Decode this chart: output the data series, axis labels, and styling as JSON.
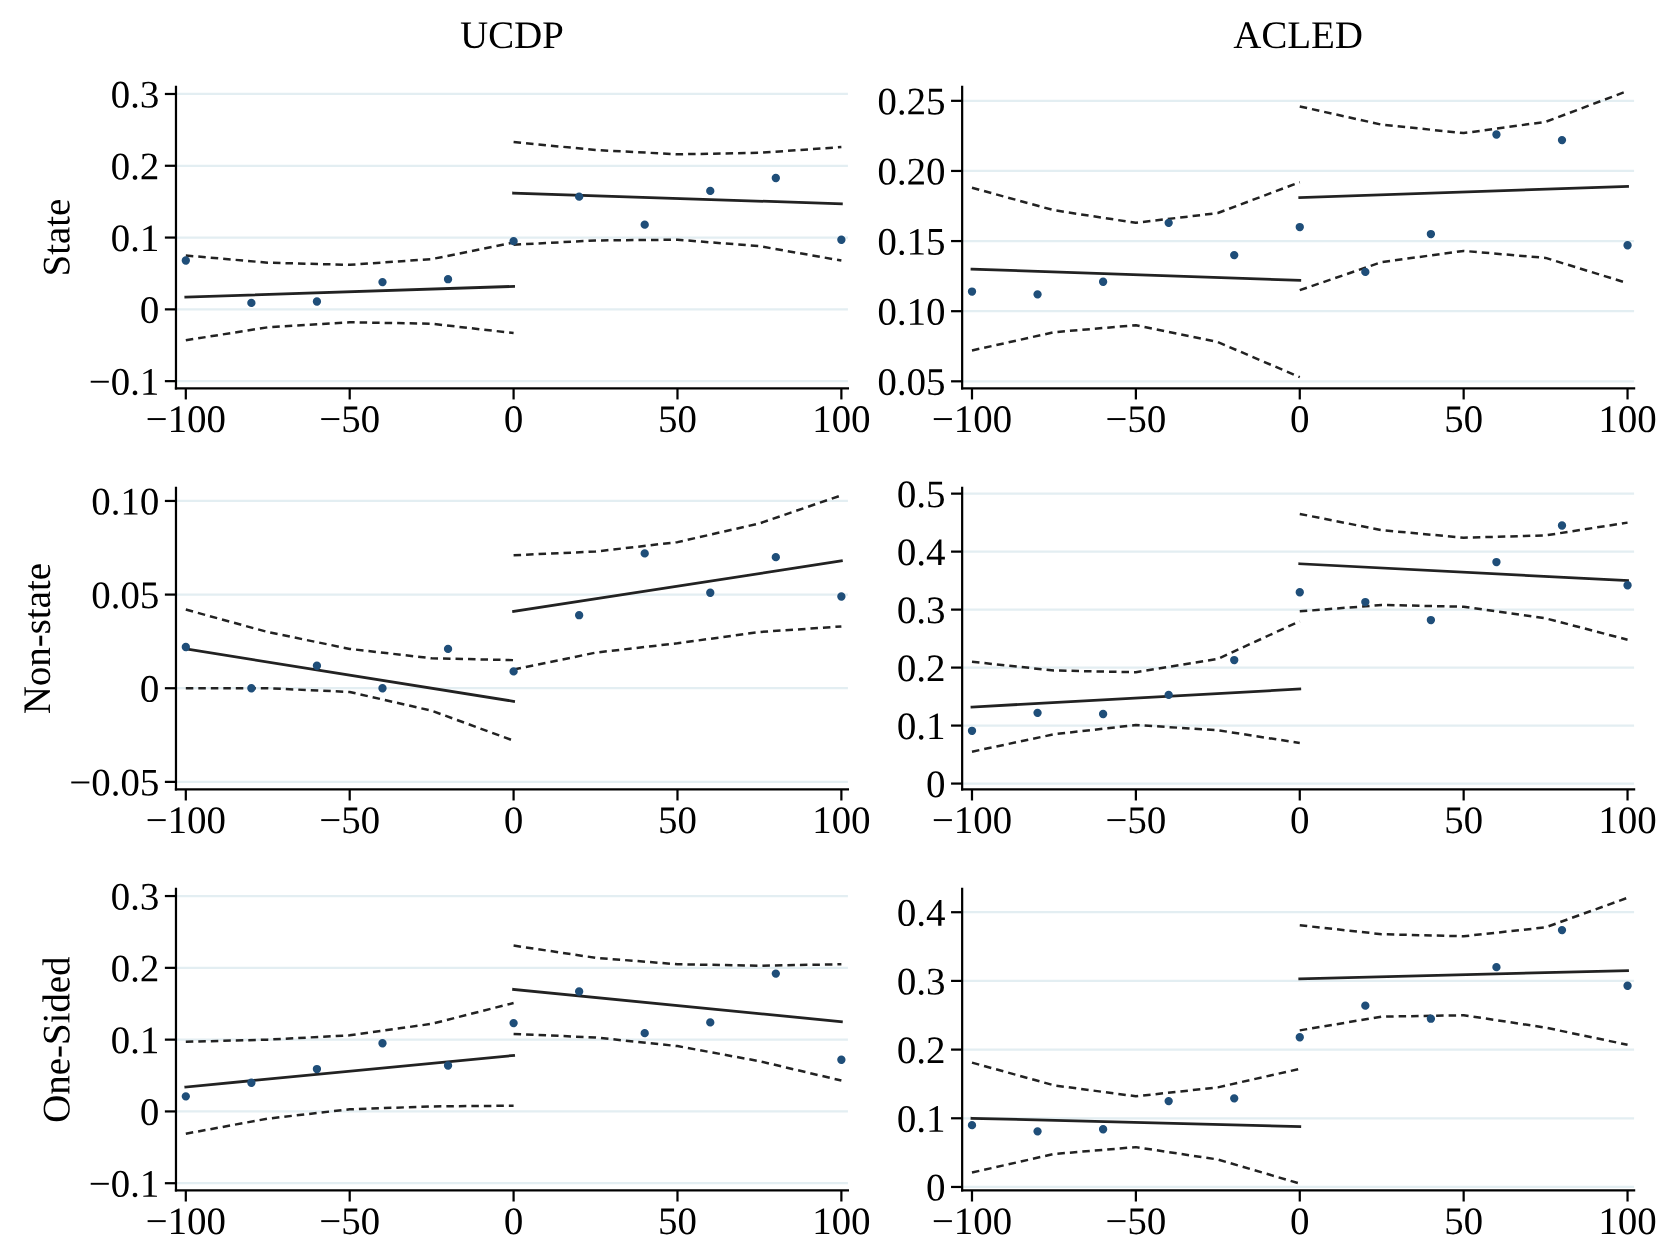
{
  "chart_data": [
    {
      "type": "scatter",
      "title": "UCDP",
      "ylabel": "State",
      "xlim": [
        -103,
        102
      ],
      "ylim": [
        -0.11,
        0.31
      ],
      "grid": "y",
      "xticks": [
        {
          "value": -100,
          "label": "−100"
        },
        {
          "value": -50,
          "label": "−50"
        },
        {
          "value": 0,
          "label": "0"
        },
        {
          "value": 50,
          "label": "50"
        },
        {
          "value": 100,
          "label": "100"
        }
      ],
      "yticks": [
        {
          "value": -0.1,
          "label": "−0.1"
        },
        {
          "value": 0,
          "label": "0"
        },
        {
          "value": 0.1,
          "label": "0.1"
        },
        {
          "value": 0.2,
          "label": "0.2"
        },
        {
          "value": 0.3,
          "label": "0.3"
        }
      ],
      "series": [
        {
          "marker": "circle",
          "color": "#1f4e79",
          "x": [
            -100,
            -80,
            -60,
            -40,
            -20,
            0,
            20,
            40,
            60,
            80,
            100
          ],
          "values": [
            0.068,
            0.009,
            0.011,
            0.038,
            0.042,
            0.095,
            0.157,
            0.118,
            0.165,
            0.183,
            0.097
          ]
        },
        {
          "type": "line",
          "line_style": "solid",
          "color": "#222222",
          "x": [
            -100,
            0
          ],
          "values": [
            0.017,
            0.032
          ]
        },
        {
          "type": "line",
          "line_style": "solid",
          "color": "#222222",
          "x": [
            0,
            100
          ],
          "values": [
            0.162,
            0.147
          ]
        },
        {
          "type": "line",
          "line_style": "dashed",
          "color": "#222222",
          "x": [
            -100,
            -75,
            -50,
            -25,
            0
          ],
          "values": [
            0.075,
            0.065,
            0.062,
            0.07,
            0.093
          ]
        },
        {
          "type": "line",
          "line_style": "dashed",
          "color": "#222222",
          "x": [
            -100,
            -75,
            -50,
            -25,
            0
          ],
          "values": [
            -0.043,
            -0.025,
            -0.018,
            -0.02,
            -0.033
          ]
        },
        {
          "type": "line",
          "line_style": "dashed",
          "color": "#222222",
          "x": [
            0,
            25,
            50,
            75,
            100
          ],
          "values": [
            0.233,
            0.222,
            0.216,
            0.218,
            0.226
          ]
        },
        {
          "type": "line",
          "line_style": "dashed",
          "color": "#222222",
          "x": [
            0,
            25,
            50,
            75,
            100
          ],
          "values": [
            0.09,
            0.096,
            0.097,
            0.088,
            0.068
          ]
        }
      ]
    },
    {
      "type": "scatter",
      "title": "ACLED",
      "xlim": [
        -103,
        102
      ],
      "ylim": [
        0.045,
        0.26
      ],
      "grid": "y",
      "xticks": [
        {
          "value": -100,
          "label": "−100"
        },
        {
          "value": -50,
          "label": "−50"
        },
        {
          "value": 0,
          "label": "0"
        },
        {
          "value": 50,
          "label": "50"
        },
        {
          "value": 100,
          "label": "100"
        }
      ],
      "yticks": [
        {
          "value": 0.05,
          "label": "0.05"
        },
        {
          "value": 0.1,
          "label": "0.10"
        },
        {
          "value": 0.15,
          "label": "0.15"
        },
        {
          "value": 0.2,
          "label": "0.20"
        },
        {
          "value": 0.25,
          "label": "0.25"
        }
      ],
      "series": [
        {
          "marker": "circle",
          "color": "#1f4e79",
          "x": [
            -100,
            -80,
            -60,
            -40,
            -20,
            0,
            20,
            40,
            60,
            80,
            100
          ],
          "values": [
            0.114,
            0.112,
            0.121,
            0.163,
            0.14,
            0.16,
            0.128,
            0.155,
            0.226,
            0.222,
            0.147
          ]
        },
        {
          "type": "line",
          "line_style": "solid",
          "color": "#222222",
          "x": [
            -100,
            0
          ],
          "values": [
            0.13,
            0.122
          ]
        },
        {
          "type": "line",
          "line_style": "solid",
          "color": "#222222",
          "x": [
            0,
            100
          ],
          "values": [
            0.181,
            0.189
          ]
        },
        {
          "type": "line",
          "line_style": "dashed",
          "color": "#222222",
          "x": [
            -100,
            -75,
            -50,
            -25,
            0
          ],
          "values": [
            0.188,
            0.172,
            0.163,
            0.17,
            0.192
          ]
        },
        {
          "type": "line",
          "line_style": "dashed",
          "color": "#222222",
          "x": [
            -100,
            -75,
            -50,
            -25,
            0
          ],
          "values": [
            0.072,
            0.085,
            0.09,
            0.078,
            0.053
          ]
        },
        {
          "type": "line",
          "line_style": "dashed",
          "color": "#222222",
          "x": [
            0,
            25,
            50,
            75,
            100
          ],
          "values": [
            0.246,
            0.233,
            0.227,
            0.235,
            0.257
          ]
        },
        {
          "type": "line",
          "line_style": "dashed",
          "color": "#222222",
          "x": [
            0,
            25,
            50,
            75,
            100
          ],
          "values": [
            0.115,
            0.135,
            0.143,
            0.138,
            0.12
          ]
        }
      ]
    },
    {
      "type": "scatter",
      "ylabel": "Non-state",
      "xlim": [
        -103,
        102
      ],
      "ylim": [
        -0.054,
        0.107
      ],
      "grid": "y",
      "xticks": [
        {
          "value": -100,
          "label": "−100"
        },
        {
          "value": -50,
          "label": "−50"
        },
        {
          "value": 0,
          "label": "0"
        },
        {
          "value": 50,
          "label": "50"
        },
        {
          "value": 100,
          "label": "100"
        }
      ],
      "yticks": [
        {
          "value": -0.05,
          "label": "−0.05"
        },
        {
          "value": 0,
          "label": "0"
        },
        {
          "value": 0.05,
          "label": "0.05"
        },
        {
          "value": 0.1,
          "label": "0.10"
        }
      ],
      "series": [
        {
          "marker": "circle",
          "color": "#1f4e79",
          "x": [
            -100,
            -80,
            -60,
            -40,
            -20,
            0,
            20,
            40,
            60,
            80,
            100
          ],
          "values": [
            0.022,
            0.0,
            0.012,
            0.0,
            0.021,
            0.009,
            0.039,
            0.072,
            0.051,
            0.07,
            0.049
          ]
        },
        {
          "type": "line",
          "line_style": "solid",
          "color": "#222222",
          "x": [
            -100,
            0
          ],
          "values": [
            0.021,
            -0.007
          ]
        },
        {
          "type": "line",
          "line_style": "solid",
          "color": "#222222",
          "x": [
            0,
            100
          ],
          "values": [
            0.041,
            0.068
          ]
        },
        {
          "type": "line",
          "line_style": "dashed",
          "color": "#222222",
          "x": [
            -100,
            -75,
            -50,
            -25,
            0
          ],
          "values": [
            0.042,
            0.03,
            0.021,
            0.016,
            0.015
          ]
        },
        {
          "type": "line",
          "line_style": "dashed",
          "color": "#222222",
          "x": [
            -100,
            -75,
            -50,
            -25,
            0
          ],
          "values": [
            0.0,
            0.0,
            -0.002,
            -0.012,
            -0.028
          ]
        },
        {
          "type": "line",
          "line_style": "dashed",
          "color": "#222222",
          "x": [
            0,
            25,
            50,
            75,
            100
          ],
          "values": [
            0.071,
            0.073,
            0.078,
            0.088,
            0.103
          ]
        },
        {
          "type": "line",
          "line_style": "dashed",
          "color": "#222222",
          "x": [
            0,
            25,
            50,
            75,
            100
          ],
          "values": [
            0.01,
            0.019,
            0.024,
            0.03,
            0.033
          ]
        }
      ]
    },
    {
      "type": "scatter",
      "xlim": [
        -103,
        102
      ],
      "ylim": [
        -0.01,
        0.51
      ],
      "grid": "y",
      "xticks": [
        {
          "value": -100,
          "label": "−100"
        },
        {
          "value": -50,
          "label": "−50"
        },
        {
          "value": 0,
          "label": "0"
        },
        {
          "value": 50,
          "label": "50"
        },
        {
          "value": 100,
          "label": "100"
        }
      ],
      "yticks": [
        0,
        0.1,
        0.2,
        0.3,
        0.4,
        0.5
      ],
      "series": [
        {
          "marker": "circle",
          "color": "#1f4e79",
          "x": [
            -100,
            -80,
            -60,
            -40,
            -20,
            0,
            20,
            40,
            60,
            80,
            100
          ],
          "values": [
            0.091,
            0.122,
            0.12,
            0.153,
            0.213,
            0.33,
            0.313,
            0.282,
            0.382,
            0.445,
            0.342
          ]
        },
        {
          "type": "line",
          "line_style": "solid",
          "color": "#222222",
          "x": [
            -100,
            0
          ],
          "values": [
            0.132,
            0.163
          ]
        },
        {
          "type": "line",
          "line_style": "solid",
          "color": "#222222",
          "x": [
            0,
            100
          ],
          "values": [
            0.379,
            0.35
          ]
        },
        {
          "type": "line",
          "line_style": "dashed",
          "color": "#222222",
          "x": [
            -100,
            -75,
            -50,
            -25,
            0
          ],
          "values": [
            0.21,
            0.195,
            0.192,
            0.215,
            0.28
          ]
        },
        {
          "type": "line",
          "line_style": "dashed",
          "color": "#222222",
          "x": [
            -100,
            -75,
            -50,
            -25,
            0
          ],
          "values": [
            0.055,
            0.085,
            0.101,
            0.092,
            0.07
          ]
        },
        {
          "type": "line",
          "line_style": "dashed",
          "color": "#222222",
          "x": [
            0,
            25,
            50,
            75,
            100
          ],
          "values": [
            0.465,
            0.437,
            0.424,
            0.428,
            0.45
          ]
        },
        {
          "type": "line",
          "line_style": "dashed",
          "color": "#222222",
          "x": [
            0,
            25,
            50,
            75,
            100
          ],
          "values": [
            0.297,
            0.308,
            0.305,
            0.285,
            0.248
          ]
        }
      ]
    },
    {
      "type": "scatter",
      "ylabel": "One-Sided",
      "xlim": [
        -103,
        102
      ],
      "ylim": [
        -0.11,
        0.31
      ],
      "grid": "y",
      "xticks": [
        {
          "value": -100,
          "label": "−100"
        },
        {
          "value": -50,
          "label": "−50"
        },
        {
          "value": 0,
          "label": "0"
        },
        {
          "value": 50,
          "label": "50"
        },
        {
          "value": 100,
          "label": "100"
        }
      ],
      "yticks": [
        {
          "value": -0.1,
          "label": "−0.1"
        },
        {
          "value": 0,
          "label": "0"
        },
        {
          "value": 0.1,
          "label": "0.1"
        },
        {
          "value": 0.2,
          "label": "0.2"
        },
        {
          "value": 0.3,
          "label": "0.3"
        }
      ],
      "series": [
        {
          "marker": "circle",
          "color": "#1f4e79",
          "x": [
            -100,
            -80,
            -60,
            -40,
            -20,
            0,
            20,
            40,
            60,
            80,
            100
          ],
          "values": [
            0.021,
            0.04,
            0.059,
            0.095,
            0.064,
            0.123,
            0.167,
            0.109,
            0.124,
            0.192,
            0.072
          ]
        },
        {
          "type": "line",
          "line_style": "solid",
          "color": "#222222",
          "x": [
            -100,
            0
          ],
          "values": [
            0.034,
            0.078
          ]
        },
        {
          "type": "line",
          "line_style": "solid",
          "color": "#222222",
          "x": [
            0,
            100
          ],
          "values": [
            0.17,
            0.125
          ]
        },
        {
          "type": "line",
          "line_style": "dashed",
          "color": "#222222",
          "x": [
            -100,
            -75,
            -50,
            -25,
            0
          ],
          "values": [
            0.097,
            0.1,
            0.106,
            0.122,
            0.151
          ]
        },
        {
          "type": "line",
          "line_style": "dashed",
          "color": "#222222",
          "x": [
            -100,
            -75,
            -50,
            -25,
            0
          ],
          "values": [
            -0.031,
            -0.01,
            0.003,
            0.007,
            0.008
          ]
        },
        {
          "type": "line",
          "line_style": "dashed",
          "color": "#222222",
          "x": [
            0,
            25,
            50,
            75,
            100
          ],
          "values": [
            0.231,
            0.214,
            0.205,
            0.203,
            0.205
          ]
        },
        {
          "type": "line",
          "line_style": "dashed",
          "color": "#222222",
          "x": [
            0,
            25,
            50,
            75,
            100
          ],
          "values": [
            0.108,
            0.103,
            0.091,
            0.07,
            0.043
          ]
        }
      ]
    },
    {
      "type": "scatter",
      "xlim": [
        -103,
        102
      ],
      "ylim": [
        -0.005,
        0.434
      ],
      "grid": "y",
      "xticks": [
        {
          "value": -100,
          "label": "−100"
        },
        {
          "value": -50,
          "label": "−50"
        },
        {
          "value": 0,
          "label": "0"
        },
        {
          "value": 50,
          "label": "50"
        },
        {
          "value": 100,
          "label": "100"
        }
      ],
      "yticks": [
        0,
        0.1,
        0.2,
        0.3,
        0.4
      ],
      "series": [
        {
          "marker": "circle",
          "color": "#1f4e79",
          "x": [
            -100,
            -80,
            -60,
            -40,
            -20,
            0,
            20,
            40,
            60,
            80,
            100
          ],
          "values": [
            0.09,
            0.081,
            0.084,
            0.125,
            0.129,
            0.218,
            0.264,
            0.245,
            0.32,
            0.374,
            0.293
          ]
        },
        {
          "type": "line",
          "line_style": "solid",
          "color": "#222222",
          "x": [
            -100,
            0
          ],
          "values": [
            0.1,
            0.088
          ]
        },
        {
          "type": "line",
          "line_style": "solid",
          "color": "#222222",
          "x": [
            0,
            100
          ],
          "values": [
            0.303,
            0.315
          ]
        },
        {
          "type": "line",
          "line_style": "dashed",
          "color": "#222222",
          "x": [
            -100,
            -75,
            -50,
            -25,
            0
          ],
          "values": [
            0.181,
            0.148,
            0.132,
            0.145,
            0.172
          ]
        },
        {
          "type": "line",
          "line_style": "dashed",
          "color": "#222222",
          "x": [
            -100,
            -75,
            -50,
            -25,
            0
          ],
          "values": [
            0.021,
            0.048,
            0.058,
            0.04,
            0.005
          ]
        },
        {
          "type": "line",
          "line_style": "dashed",
          "color": "#222222",
          "x": [
            0,
            25,
            50,
            75,
            100
          ],
          "values": [
            0.381,
            0.368,
            0.365,
            0.378,
            0.421
          ]
        },
        {
          "type": "line",
          "line_style": "dashed",
          "color": "#222222",
          "x": [
            0,
            25,
            50,
            75,
            100
          ],
          "values": [
            0.228,
            0.248,
            0.25,
            0.232,
            0.207
          ]
        }
      ]
    }
  ]
}
